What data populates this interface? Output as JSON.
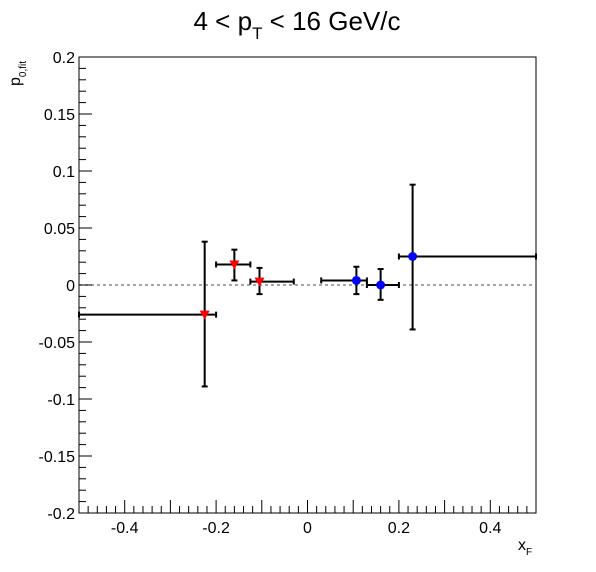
{
  "chart_data": {
    "type": "scatter",
    "title": {
      "main": "4 < p",
      "sub": "T",
      "rest": " < 16 GeV/c"
    },
    "xlabel": {
      "main": "x",
      "sub": "F"
    },
    "ylabel": {
      "main": "p",
      "sub": "0,fit"
    },
    "xlim": [
      -0.5,
      0.5
    ],
    "ylim": [
      -0.2,
      0.2
    ],
    "x_ticks": [
      {
        "v": -0.4,
        "label": "-0.4"
      },
      {
        "v": -0.2,
        "label": "-0.2"
      },
      {
        "v": 0,
        "label": "0"
      },
      {
        "v": 0.2,
        "label": "0.2"
      },
      {
        "v": 0.4,
        "label": "0.4"
      }
    ],
    "y_ticks": [
      {
        "v": 0.2,
        "label": "0.2"
      },
      {
        "v": 0.15,
        "label": "0.15"
      },
      {
        "v": 0.1,
        "label": "0.1"
      },
      {
        "v": 0.05,
        "label": "0.05"
      },
      {
        "v": 0,
        "label": "0"
      },
      {
        "v": -0.05,
        "label": "-0.05"
      },
      {
        "v": -0.1,
        "label": "-0.1"
      },
      {
        "v": -0.15,
        "label": "-0.15"
      },
      {
        "v": -0.2,
        "label": "-0.2"
      }
    ],
    "reference_line": {
      "y": 0,
      "style": "dashed",
      "color": "#888888"
    },
    "grid": false,
    "series": [
      {
        "marker": "triangle-down",
        "color": "#ff0000",
        "points": [
          {
            "x": -0.225,
            "y": -0.026,
            "xlo": -0.5,
            "xhi": -0.2,
            "ylo": -0.089,
            "yhi": 0.038
          },
          {
            "x": -0.16,
            "y": 0.018,
            "xlo": -0.2,
            "xhi": -0.125,
            "ylo": 0.004,
            "yhi": 0.031
          },
          {
            "x": -0.105,
            "y": 0.003,
            "xlo": -0.125,
            "xhi": -0.03,
            "ylo": -0.008,
            "yhi": 0.015
          }
        ]
      },
      {
        "marker": "circle",
        "color": "#0000ff",
        "points": [
          {
            "x": 0.107,
            "y": 0.004,
            "xlo": 0.03,
            "xhi": 0.13,
            "ylo": -0.008,
            "yhi": 0.016
          },
          {
            "x": 0.16,
            "y": 0.0,
            "xlo": 0.13,
            "xhi": 0.2,
            "ylo": -0.013,
            "yhi": 0.014
          },
          {
            "x": 0.23,
            "y": 0.025,
            "xlo": 0.2,
            "xhi": 0.5,
            "ylo": -0.039,
            "yhi": 0.088
          }
        ]
      }
    ]
  }
}
